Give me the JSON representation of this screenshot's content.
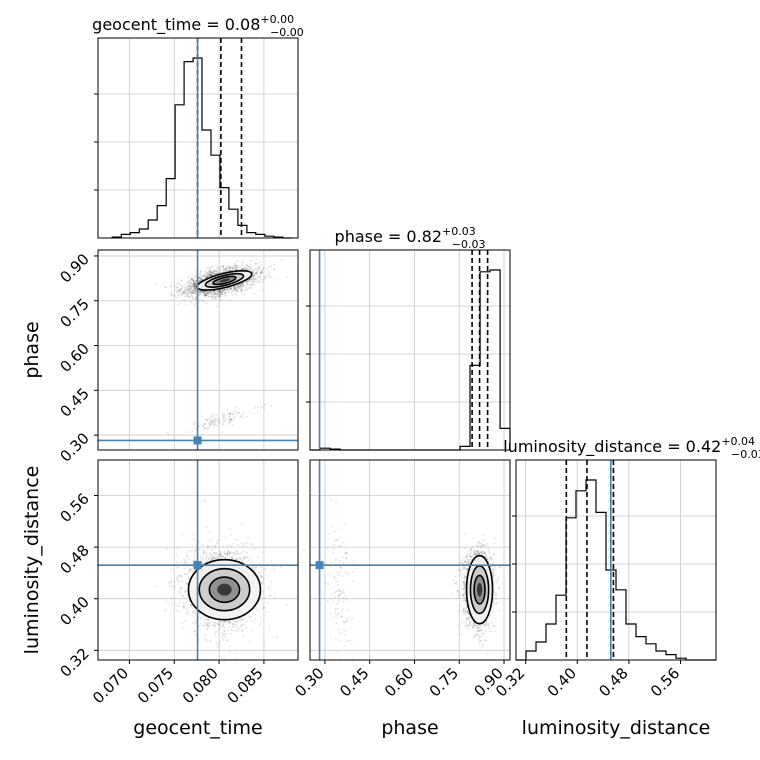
{
  "chart_data": {
    "type": "corner",
    "parameters": [
      {
        "name": "geocent_time",
        "label": "geocent_time",
        "truth": 0.0776,
        "range": [
          0.0665,
          0.0888
        ],
        "ticks": [
          "0.070",
          "0.075",
          "0.080",
          "0.085"
        ],
        "tick_values": [
          0.07,
          0.075,
          0.08,
          0.085
        ],
        "quantiles": [
          0.0776,
          0.0802,
          0.0825
        ],
        "title": "geocent_time = 0.08",
        "title_sup": "+0.00",
        "title_sub": "−0.00",
        "hist_bins": [
          0.0681,
          0.0691,
          0.0701,
          0.0711,
          0.0721,
          0.0731,
          0.0741,
          0.0751,
          0.0761,
          0.0771,
          0.0781,
          0.0791,
          0.0801,
          0.0811,
          0.0821,
          0.0831,
          0.0841,
          0.0851,
          0.0861,
          0.0871,
          0.0881
        ],
        "hist_counts": [
          0.5,
          2,
          3,
          5,
          10,
          18,
          33,
          74,
          98,
          100,
          60,
          46,
          28,
          16,
          7,
          3,
          2,
          1,
          0.5,
          0
        ]
      },
      {
        "name": "phase",
        "label": "phase",
        "truth": 0.282,
        "range": [
          0.25,
          0.92
        ],
        "ticks": [
          "0.30",
          "0.45",
          "0.60",
          "0.75",
          "0.90"
        ],
        "tick_values": [
          0.3,
          0.45,
          0.6,
          0.75,
          0.9
        ],
        "quantiles": [
          0.793,
          0.818,
          0.845
        ],
        "title": "phase = 0.82",
        "title_sup": "+0.03",
        "title_sub": "−0.03",
        "hist_bins": [
          0.25,
          0.284,
          0.317,
          0.351,
          0.384,
          0.418,
          0.451,
          0.485,
          0.518,
          0.552,
          0.585,
          0.619,
          0.652,
          0.686,
          0.719,
          0.753,
          0.786,
          0.82,
          0.853,
          0.887,
          0.92
        ],
        "hist_counts": [
          0,
          1,
          0.5,
          0,
          0,
          0,
          0,
          0,
          0,
          0,
          0,
          0,
          0,
          0,
          0,
          2,
          47,
          99,
          100,
          12
        ]
      },
      {
        "name": "luminosity_distance",
        "label": "luminosity_distance",
        "truth": 0.452,
        "range": [
          0.305,
          0.615
        ],
        "ticks": [
          "0.32",
          "0.40",
          "0.48",
          "0.56"
        ],
        "tick_values": [
          0.32,
          0.4,
          0.48,
          0.56
        ],
        "quantiles": [
          0.383,
          0.415,
          0.456
        ],
        "title": "luminosity_distance = 0.42",
        "title_sup": "+0.04",
        "title_sub": "−0.03",
        "hist_bins": [
          0.305,
          0.3205,
          0.336,
          0.3515,
          0.367,
          0.3825,
          0.398,
          0.4135,
          0.429,
          0.4445,
          0.46,
          0.4755,
          0.491,
          0.5065,
          0.522,
          0.5375,
          0.553,
          0.5685,
          0.584,
          0.5995,
          0.615
        ],
        "hist_counts": [
          0,
          5,
          10,
          20,
          36,
          79,
          94,
          100,
          82,
          50,
          39,
          20,
          13,
          9,
          5,
          3,
          1,
          0,
          0,
          0
        ]
      }
    ],
    "grid": true,
    "truth_color": "#4682b4",
    "contour_levels": 3
  }
}
